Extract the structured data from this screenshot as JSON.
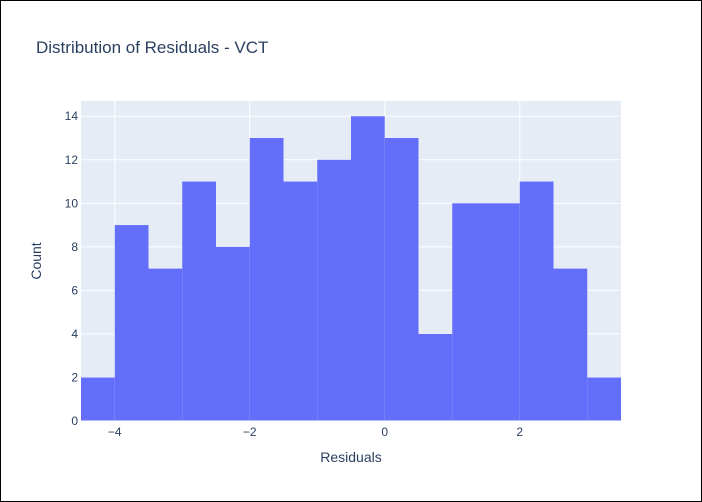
{
  "chart_data": {
    "type": "bar",
    "title": "Distribution of Residuals - VCT",
    "xlabel": "Residuals",
    "ylabel": "Count",
    "bin_width": 0.5,
    "bins": [
      {
        "x0": -4.5,
        "x1": -4.0,
        "count": 2
      },
      {
        "x0": -4.0,
        "x1": -3.5,
        "count": 9
      },
      {
        "x0": -3.5,
        "x1": -3.0,
        "count": 7
      },
      {
        "x0": -3.0,
        "x1": -2.5,
        "count": 11
      },
      {
        "x0": -2.5,
        "x1": -2.0,
        "count": 8
      },
      {
        "x0": -2.0,
        "x1": -1.5,
        "count": 13
      },
      {
        "x0": -1.5,
        "x1": -1.0,
        "count": 11
      },
      {
        "x0": -1.0,
        "x1": -0.5,
        "count": 12
      },
      {
        "x0": -0.5,
        "x1": 0.0,
        "count": 14
      },
      {
        "x0": 0.0,
        "x1": 0.5,
        "count": 13
      },
      {
        "x0": 0.5,
        "x1": 1.0,
        "count": 4
      },
      {
        "x0": 1.0,
        "x1": 1.5,
        "count": 10
      },
      {
        "x0": 1.5,
        "x1": 2.0,
        "count": 10
      },
      {
        "x0": 2.0,
        "x1": 2.5,
        "count": 11
      },
      {
        "x0": 2.5,
        "x1": 3.0,
        "count": 7
      },
      {
        "x0": 3.0,
        "x1": 3.5,
        "count": 2
      }
    ],
    "xlim": [
      -4.5,
      3.5
    ],
    "ylim": [
      0,
      14.7
    ],
    "x_ticks": [
      -4,
      -2,
      0,
      2
    ],
    "x_tick_labels": [
      "−4",
      "−2",
      "0",
      "2"
    ],
    "y_ticks": [
      0,
      2,
      4,
      6,
      8,
      10,
      12,
      14
    ],
    "y_tick_labels": [
      "0",
      "2",
      "4",
      "6",
      "8",
      "10",
      "12",
      "14"
    ],
    "grid": true,
    "legend": "none",
    "colors": {
      "bar": "#636efa",
      "plot_background": "#e5ecf6",
      "grid": "#ffffff",
      "text": "#2a3f5f"
    }
  }
}
